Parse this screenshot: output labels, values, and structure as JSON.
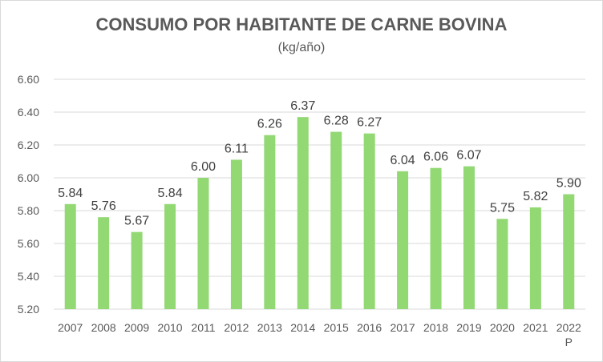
{
  "chart_data": {
    "type": "bar",
    "title": "CONSUMO POR HABITANTE DE CARNE BOVINA",
    "subtitle": "(kg/año)",
    "categories": [
      "2007",
      "2008",
      "2009",
      "2010",
      "2011",
      "2012",
      "2013",
      "2014",
      "2015",
      "2016",
      "2017",
      "2018",
      "2019",
      "2020",
      "2021",
      "2022 P"
    ],
    "values": [
      5.84,
      5.76,
      5.67,
      5.84,
      6.0,
      6.11,
      6.26,
      6.37,
      6.28,
      6.27,
      6.04,
      6.06,
      6.07,
      5.75,
      5.82,
      5.9
    ],
    "data_labels": [
      "5.84",
      "5.76",
      "5.67",
      "5.84",
      "6.00",
      "6.11",
      "6.26",
      "6.37",
      "6.28",
      "6.27",
      "6.04",
      "6.06",
      "6.07",
      "5.75",
      "5.82",
      "5.90"
    ],
    "ylim": [
      5.2,
      6.6
    ],
    "yticks": [
      "5.20",
      "5.40",
      "5.60",
      "5.80",
      "6.00",
      "6.20",
      "6.40",
      "6.60"
    ],
    "grid": true,
    "legend": "none",
    "bar_color": "#92d873",
    "grid_color": "#d9d9d9"
  }
}
